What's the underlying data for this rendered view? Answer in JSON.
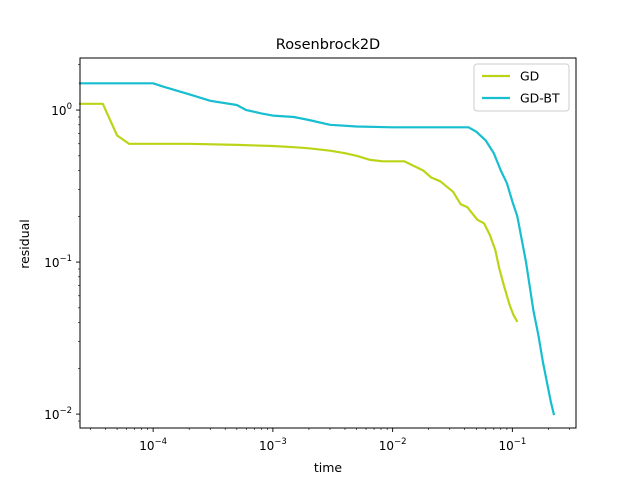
{
  "chart_data": {
    "type": "line",
    "title": "Rosenbrock2D",
    "xlabel": "time",
    "ylabel": "residual",
    "xscale": "log",
    "yscale": "log",
    "xlim": [
      2.45e-05,
      0.34
    ],
    "ylim": [
      0.0081,
      2.2
    ],
    "grid": false,
    "legend_position": "top-right",
    "x_ticks": [
      {
        "value": 0.0001,
        "base": "10",
        "exp": "−4"
      },
      {
        "value": 0.001,
        "base": "10",
        "exp": "−3"
      },
      {
        "value": 0.01,
        "base": "10",
        "exp": "−2"
      },
      {
        "value": 0.1,
        "base": "10",
        "exp": "−1"
      }
    ],
    "y_ticks": [
      {
        "value": 0.01,
        "base": "10",
        "exp": "−2"
      },
      {
        "value": 0.1,
        "base": "10",
        "exp": "−1"
      },
      {
        "value": 1,
        "base": "10",
        "exp": "0"
      }
    ],
    "series": [
      {
        "name": "GD",
        "color": "#bcd418",
        "x": [
          2.45e-05,
          3.8e-05,
          5e-05,
          6.3e-05,
          0.0001,
          0.0002,
          0.0005,
          0.001,
          0.0015,
          0.002,
          0.003,
          0.004,
          0.005,
          0.0065,
          0.0082,
          0.0125,
          0.018,
          0.021,
          0.025,
          0.032,
          0.037,
          0.042,
          0.051,
          0.058,
          0.065,
          0.072,
          0.078,
          0.085,
          0.095,
          0.102,
          0.109
        ],
        "y": [
          1.1,
          1.1,
          0.68,
          0.6,
          0.6,
          0.6,
          0.59,
          0.58,
          0.57,
          0.56,
          0.54,
          0.52,
          0.5,
          0.47,
          0.46,
          0.46,
          0.4,
          0.36,
          0.34,
          0.29,
          0.24,
          0.23,
          0.19,
          0.18,
          0.15,
          0.12,
          0.09,
          0.07,
          0.052,
          0.045,
          0.041
        ]
      },
      {
        "name": "GD-BT",
        "color": "#17becf",
        "x": [
          2.45e-05,
          0.0001,
          0.00012,
          0.0002,
          0.0003,
          0.0005,
          0.0006,
          0.0008,
          0.001,
          0.0015,
          0.002,
          0.003,
          0.005,
          0.01,
          0.02,
          0.03,
          0.043,
          0.05,
          0.06,
          0.07,
          0.08,
          0.09,
          0.1,
          0.11,
          0.12,
          0.13,
          0.14,
          0.15,
          0.165,
          0.18,
          0.195,
          0.21,
          0.222
        ],
        "y": [
          1.5,
          1.5,
          1.43,
          1.27,
          1.15,
          1.08,
          1.0,
          0.95,
          0.92,
          0.9,
          0.86,
          0.8,
          0.78,
          0.77,
          0.77,
          0.77,
          0.77,
          0.72,
          0.63,
          0.52,
          0.4,
          0.33,
          0.25,
          0.2,
          0.14,
          0.1,
          0.068,
          0.048,
          0.033,
          0.022,
          0.016,
          0.012,
          0.01
        ]
      }
    ]
  }
}
